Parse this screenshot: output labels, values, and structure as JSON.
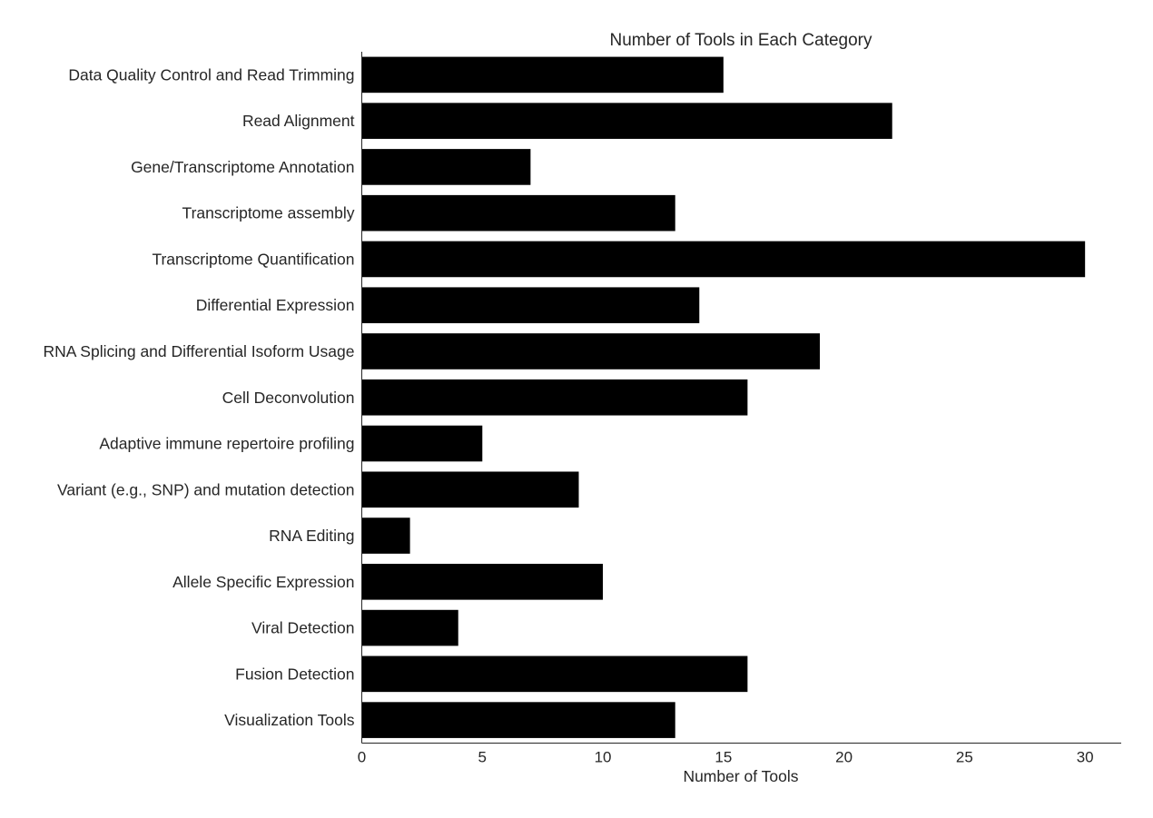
{
  "chart_data": {
    "type": "bar",
    "orientation": "horizontal",
    "title": "Number of Tools in Each Category",
    "xlabel": "Number of Tools",
    "ylabel": "",
    "categories": [
      "Data Quality Control and Read Trimming",
      "Read Alignment",
      "Gene/Transcriptome Annotation",
      "Transcriptome assembly",
      "Transcriptome Quantification",
      "Differential Expression",
      "RNA Splicing and Differential Isoform Usage",
      "Cell Deconvolution",
      "Adaptive immune repertoire profiling",
      "Variant (e.g., SNP) and mutation detection",
      "RNA Editing",
      "Allele Specific Expression",
      "Viral Detection",
      "Fusion Detection",
      "Visualization Tools"
    ],
    "values": [
      15,
      22,
      7,
      13,
      30,
      14,
      19,
      16,
      5,
      9,
      2,
      10,
      4,
      16,
      13
    ],
    "xlim": [
      0,
      31.5
    ],
    "xticks": [
      0,
      5,
      10,
      15,
      20,
      25,
      30
    ],
    "grid": false,
    "bar_color": "#000000",
    "axis_color": "#262626"
  }
}
